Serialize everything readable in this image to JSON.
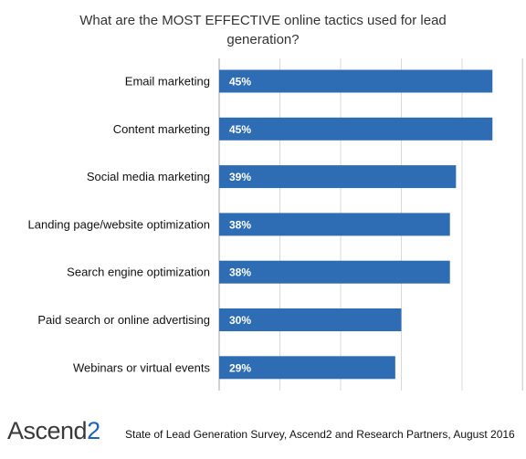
{
  "chart_data": {
    "type": "bar",
    "orientation": "horizontal",
    "title": "What are the MOST EFFECTIVE online tactics used for lead generation?",
    "categories": [
      "Email marketing",
      "Content marketing",
      "Social media marketing",
      "Landing page/website optimization",
      "Search engine optimization",
      "Paid search or online advertising",
      "Webinars or virtual events"
    ],
    "values": [
      45,
      45,
      39,
      38,
      38,
      30,
      29
    ],
    "value_labels": [
      "45%",
      "45%",
      "39%",
      "38%",
      "38%",
      "30%",
      "29%"
    ],
    "xlim": [
      0,
      50
    ],
    "grid": true,
    "legend": "none",
    "bar_color": "#2e6db4",
    "label_color": "#ffffff"
  },
  "footer": {
    "logo_main": "Ascend",
    "logo_accent": "2",
    "source": "State of Lead Generation Survey, Ascend2 and Research Partners, August 2016"
  }
}
